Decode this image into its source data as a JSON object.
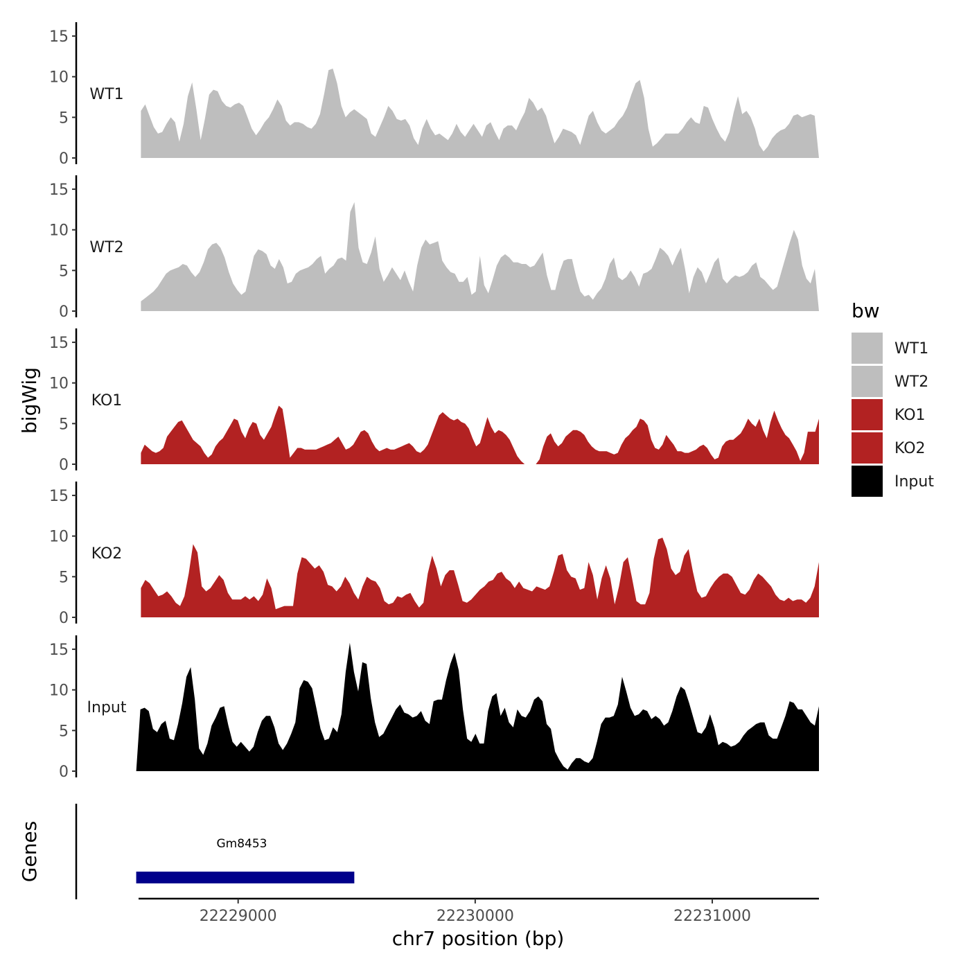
{
  "chart_data": {
    "type": "area",
    "title": "",
    "ylabel": "bigWig",
    "xlabel": "chr7 position (bp)",
    "genes_label": "Genes",
    "ylim": [
      0,
      16
    ],
    "y_ticks": [
      0,
      5,
      10,
      15
    ],
    "x_range": [
      22228580,
      22231450
    ],
    "x_ticks": [
      {
        "value": 22229000,
        "label": "22229000"
      },
      {
        "value": 22230000,
        "label": "22230000"
      },
      {
        "value": 22231000,
        "label": "22231000"
      }
    ],
    "legend": {
      "title": "bw",
      "position": "right"
    },
    "series": [
      {
        "name": "WT1",
        "label": "WT1",
        "color": "#bebebe",
        "start": 22228590,
        "end": 22231450,
        "values": [
          5.8,
          6.6,
          5.2,
          3.8,
          3.0,
          3.2,
          4.2,
          5.0,
          4.4,
          2.0,
          4.2,
          7.6,
          9.3,
          6.0,
          2.2,
          4.8,
          7.8,
          8.4,
          8.2,
          7.0,
          6.4,
          6.2,
          6.6,
          6.8,
          6.4,
          5.0,
          3.6,
          2.8,
          3.5,
          4.4,
          5.0,
          6.0,
          7.2,
          6.4,
          4.6,
          4.0,
          4.4,
          4.4,
          4.2,
          3.8,
          3.6,
          4.2,
          5.4,
          8.0,
          10.8,
          11.0,
          9.2,
          6.4,
          5.0,
          5.6,
          6.0,
          5.6,
          5.2,
          4.8,
          3.0,
          2.6,
          3.8,
          5.0,
          6.4,
          5.8,
          4.8,
          4.6,
          4.8,
          4.0,
          2.4,
          1.6,
          3.6,
          4.8,
          3.6,
          2.8,
          3.0,
          2.6,
          2.2,
          3.0,
          4.2,
          3.2,
          2.6,
          3.4,
          4.2,
          3.4,
          2.6,
          4.0,
          4.4,
          3.2,
          2.2,
          3.6,
          4.0,
          4.0,
          3.4,
          4.6,
          5.6,
          7.4,
          6.8,
          5.8,
          6.2,
          5.2,
          3.4,
          1.8,
          2.6,
          3.6,
          3.4,
          3.2,
          2.8,
          1.6,
          3.4,
          5.2,
          5.8,
          4.4,
          3.4,
          3.0,
          3.4,
          3.8,
          4.6,
          5.2,
          6.2,
          7.8,
          9.2,
          9.6,
          7.4,
          3.6,
          1.4,
          1.8,
          2.4,
          3.0,
          3.0,
          3.0,
          3.0,
          3.6,
          4.4,
          5.0,
          4.4,
          4.2,
          6.4,
          6.2,
          4.8,
          3.6,
          2.6,
          2.0,
          3.2,
          5.6,
          7.6,
          5.4,
          5.8,
          5.0,
          3.6,
          1.6,
          0.8,
          1.4,
          2.4,
          3.0,
          3.4,
          3.6,
          4.2,
          5.2,
          5.4,
          5.0,
          5.2,
          5.4,
          5.2,
          0.0
        ]
      },
      {
        "name": "WT2",
        "label": "WT2",
        "color": "#bebebe",
        "start": 22228590,
        "end": 22231450,
        "values": [
          1.2,
          1.6,
          2.0,
          2.4,
          3.0,
          3.8,
          4.6,
          5.0,
          5.2,
          5.4,
          5.8,
          5.6,
          4.8,
          4.2,
          4.8,
          6.0,
          7.6,
          8.2,
          8.4,
          7.8,
          6.6,
          4.8,
          3.4,
          2.6,
          2.0,
          2.4,
          4.6,
          6.8,
          7.6,
          7.4,
          7.0,
          5.6,
          5.2,
          6.4,
          5.4,
          3.4,
          3.6,
          4.6,
          5.0,
          5.2,
          5.4,
          5.8,
          6.4,
          6.8,
          4.6,
          5.2,
          5.6,
          6.4,
          6.6,
          6.2,
          12.2,
          13.4,
          7.8,
          6.0,
          5.8,
          7.2,
          9.2,
          5.2,
          3.6,
          4.4,
          5.4,
          4.6,
          3.8,
          5.0,
          3.6,
          2.4,
          5.6,
          7.8,
          8.8,
          8.2,
          8.4,
          8.6,
          6.2,
          5.4,
          4.8,
          4.6,
          3.6,
          3.6,
          4.2,
          2.0,
          2.4,
          6.8,
          3.2,
          2.2,
          3.8,
          5.6,
          6.6,
          7.0,
          6.6,
          6.0,
          6.0,
          5.8,
          5.8,
          5.4,
          5.6,
          6.4,
          7.2,
          4.4,
          2.6,
          2.6,
          4.8,
          6.2,
          6.4,
          6.4,
          4.2,
          2.4,
          1.8,
          2.0,
          1.4,
          2.2,
          2.8,
          4.0,
          5.8,
          6.6,
          4.2,
          3.8,
          4.2,
          5.0,
          4.2,
          3.0,
          4.6,
          4.8,
          5.2,
          6.4,
          7.8,
          7.4,
          6.8,
          5.6,
          6.8,
          7.8,
          5.2,
          2.2,
          4.2,
          5.4,
          4.8,
          3.4,
          4.6,
          6.0,
          6.6,
          4.0,
          3.4,
          4.0,
          4.4,
          4.2,
          4.4,
          4.8,
          5.6,
          6.0,
          4.2,
          3.8,
          3.2,
          2.6,
          3.0,
          4.8,
          6.6,
          8.4,
          10.0,
          8.8,
          5.6,
          4.0,
          3.4,
          5.2,
          0.0
        ]
      },
      {
        "name": "KO1",
        "label": "KO1",
        "color": "#b22222",
        "start": 22228590,
        "end": 22231450,
        "values": [
          1.4,
          2.4,
          2.0,
          1.6,
          1.4,
          1.6,
          2.0,
          3.4,
          4.0,
          4.6,
          5.2,
          5.4,
          4.6,
          3.8,
          3.0,
          2.6,
          2.2,
          1.4,
          0.8,
          1.2,
          2.2,
          2.8,
          3.2,
          4.0,
          4.8,
          5.6,
          5.4,
          4.0,
          3.2,
          4.4,
          5.2,
          5.0,
          3.6,
          3.0,
          3.8,
          4.6,
          6.0,
          7.2,
          6.8,
          4.0,
          0.8,
          1.4,
          2.0,
          2.0,
          1.8,
          1.8,
          1.8,
          1.8,
          2.0,
          2.2,
          2.4,
          2.6,
          3.0,
          3.4,
          2.6,
          1.8,
          2.0,
          2.4,
          3.2,
          4.0,
          4.2,
          3.8,
          2.8,
          2.0,
          1.6,
          1.8,
          2.0,
          1.8,
          1.8,
          2.0,
          2.2,
          2.4,
          2.6,
          2.2,
          1.6,
          1.4,
          1.8,
          2.4,
          3.6,
          4.8,
          6.0,
          6.4,
          6.0,
          5.6,
          5.4,
          5.6,
          5.2,
          5.0,
          4.4,
          3.2,
          2.2,
          2.6,
          4.2,
          5.8,
          4.6,
          3.8,
          4.2,
          4.0,
          3.6,
          3.0,
          2.0,
          1.0,
          0.4,
          0.0,
          0.0,
          0.0,
          0.0,
          0.6,
          2.2,
          3.4,
          3.8,
          2.8,
          2.2,
          2.6,
          3.4,
          3.8,
          4.2,
          4.2,
          4.0,
          3.6,
          2.8,
          2.2,
          1.8,
          1.6,
          1.6,
          1.6,
          1.4,
          1.2,
          1.4,
          2.4,
          3.2,
          3.6,
          4.2,
          4.6,
          5.6,
          5.4,
          4.8,
          3.0,
          2.0,
          1.8,
          2.4,
          3.6,
          3.0,
          2.4,
          1.6,
          1.6,
          1.4,
          1.4,
          1.6,
          1.8,
          2.2,
          2.4,
          2.0,
          1.2,
          0.6,
          0.8,
          2.2,
          2.8,
          3.0,
          3.0,
          3.4,
          3.8,
          4.6,
          5.6,
          5.0,
          4.6,
          5.6,
          4.2,
          3.2,
          5.2,
          6.6,
          5.4,
          4.4,
          3.6,
          3.2,
          2.4,
          1.6,
          0.4,
          1.4,
          4.0,
          4.0,
          4.0,
          5.6
        ]
      },
      {
        "name": "KO2",
        "label": "KO2",
        "color": "#b22222",
        "start": 22228590,
        "end": 22231450,
        "values": [
          3.6,
          4.6,
          4.2,
          3.4,
          2.6,
          2.8,
          3.2,
          2.6,
          1.8,
          1.4,
          2.6,
          5.4,
          9.0,
          8.0,
          3.8,
          3.2,
          3.6,
          4.4,
          5.2,
          4.6,
          3.0,
          2.2,
          2.2,
          2.2,
          2.6,
          2.2,
          2.6,
          2.0,
          2.8,
          4.8,
          3.6,
          1.0,
          1.2,
          1.4,
          1.4,
          1.4,
          5.4,
          7.4,
          7.2,
          6.6,
          6.0,
          6.4,
          5.6,
          4.0,
          3.8,
          3.2,
          3.8,
          5.0,
          4.2,
          3.0,
          2.2,
          3.8,
          5.0,
          4.6,
          4.4,
          3.6,
          2.0,
          1.6,
          1.8,
          2.6,
          2.4,
          2.8,
          3.0,
          2.0,
          1.2,
          1.8,
          5.4,
          7.6,
          6.0,
          3.8,
          5.2,
          5.8,
          5.8,
          4.0,
          2.0,
          1.8,
          2.2,
          2.8,
          3.4,
          3.8,
          4.4,
          4.6,
          5.4,
          5.6,
          4.8,
          4.4,
          3.6,
          4.4,
          3.6,
          3.4,
          3.2,
          3.8,
          3.6,
          3.4,
          3.8,
          5.6,
          7.6,
          7.8,
          5.8,
          5.0,
          4.8,
          3.4,
          3.6,
          6.8,
          5.2,
          2.2,
          4.8,
          6.4,
          4.8,
          1.6,
          3.8,
          6.8,
          7.4,
          4.8,
          2.0,
          1.6,
          1.6,
          3.0,
          7.2,
          9.6,
          9.8,
          8.4,
          6.0,
          5.2,
          5.6,
          7.6,
          8.4,
          5.6,
          3.2,
          2.4,
          2.6,
          3.6,
          4.4,
          5.0,
          5.4,
          5.4,
          5.0,
          4.0,
          3.0,
          2.8,
          3.4,
          4.6,
          5.4,
          5.0,
          4.4,
          3.8,
          2.8,
          2.2,
          2.0,
          2.4,
          2.0,
          2.2,
          2.2,
          1.8,
          2.4,
          3.8,
          6.8
        ]
      },
      {
        "name": "Input",
        "label": "Input",
        "color": "#000000",
        "start": 22228570,
        "end": 22231450,
        "values": [
          0.0,
          7.6,
          7.8,
          7.4,
          5.2,
          4.8,
          5.8,
          6.2,
          4.0,
          3.8,
          5.8,
          8.4,
          11.6,
          12.8,
          8.8,
          2.8,
          2.0,
          3.4,
          5.6,
          6.6,
          7.8,
          8.0,
          5.6,
          3.6,
          3.0,
          3.6,
          3.0,
          2.4,
          3.0,
          4.8,
          6.2,
          6.8,
          6.8,
          5.4,
          3.4,
          2.6,
          3.4,
          4.6,
          6.0,
          10.2,
          11.2,
          11.0,
          10.2,
          7.8,
          5.2,
          3.8,
          4.0,
          5.4,
          4.8,
          7.0,
          12.2,
          15.8,
          12.2,
          9.8,
          13.4,
          13.2,
          9.0,
          6.0,
          4.2,
          4.6,
          5.6,
          6.6,
          7.6,
          8.2,
          7.2,
          7.0,
          6.6,
          6.8,
          7.4,
          6.2,
          5.8,
          8.6,
          8.8,
          8.8,
          11.2,
          13.2,
          14.6,
          12.4,
          7.6,
          4.0,
          3.6,
          4.6,
          3.4,
          3.4,
          7.4,
          9.2,
          9.6,
          6.8,
          7.8,
          6.0,
          5.4,
          7.6,
          6.8,
          6.6,
          7.4,
          8.8,
          9.2,
          8.6,
          5.8,
          5.2,
          2.4,
          1.4,
          0.6,
          0.2,
          1.0,
          1.6,
          1.6,
          1.2,
          1.0,
          1.6,
          3.6,
          5.8,
          6.6,
          6.6,
          6.8,
          8.2,
          11.6,
          9.8,
          7.8,
          6.8,
          7.0,
          7.6,
          7.4,
          6.4,
          6.8,
          6.4,
          5.6,
          6.0,
          7.4,
          9.2,
          10.4,
          10.0,
          8.4,
          6.6,
          4.8,
          4.6,
          5.4,
          7.0,
          5.4,
          3.2,
          3.6,
          3.4,
          3.0,
          3.2,
          3.6,
          4.4,
          5.0,
          5.4,
          5.8,
          6.0,
          6.0,
          4.4,
          4.0,
          4.0,
          5.4,
          6.8,
          8.6,
          8.4,
          7.6,
          7.6,
          6.8,
          6.0,
          5.6,
          8.0
        ]
      }
    ],
    "genes": [
      {
        "name": "Gm8453",
        "start": 22228570,
        "end": 22229490,
        "color": "#00008b"
      }
    ]
  }
}
